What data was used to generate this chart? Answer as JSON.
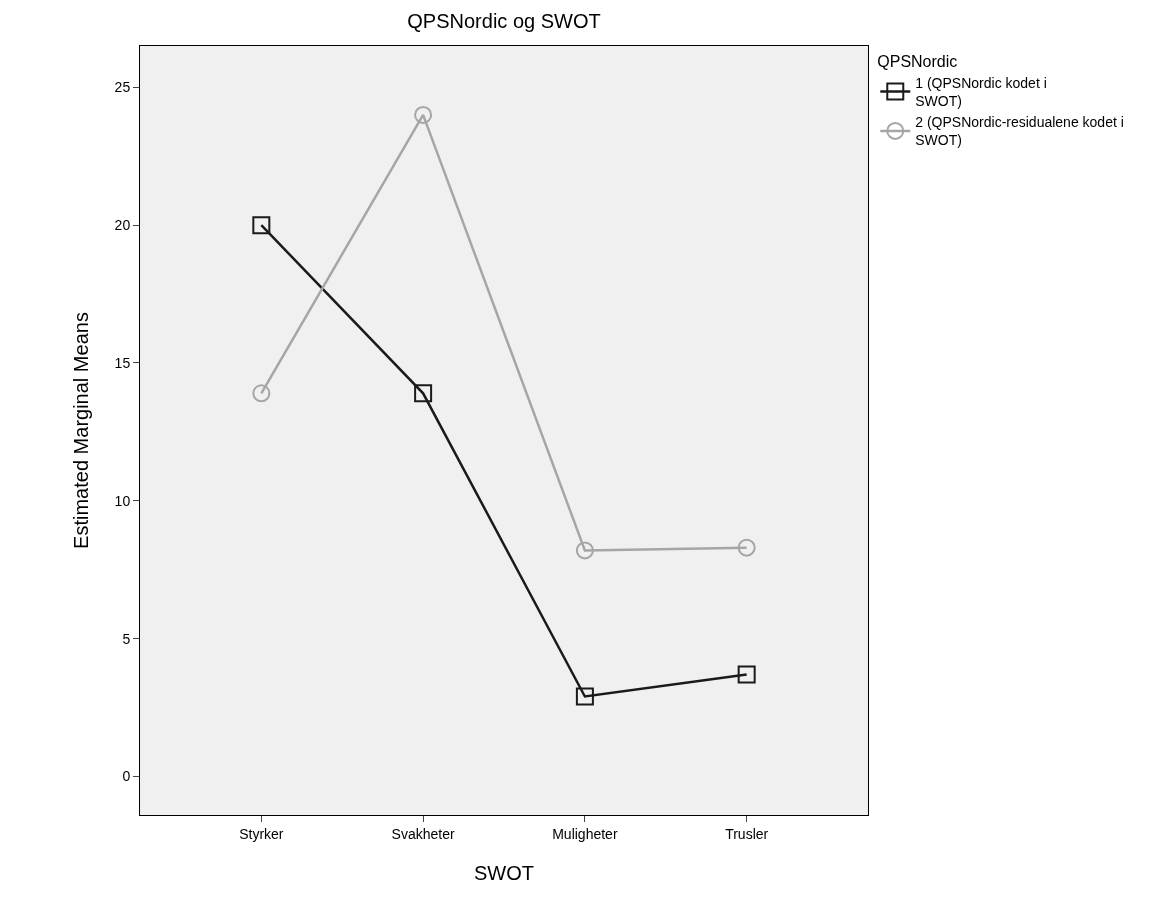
{
  "chart_data": {
    "type": "line",
    "title": "QPSNordic og SWOT",
    "xlabel": "SWOT",
    "ylabel": "Estimated Marginal Means",
    "legend_title": "QPSNordic",
    "categories": [
      "Styrker",
      "Svakheter",
      "Muligheter",
      "Trusler"
    ],
    "series": [
      {
        "name": "1 (QPSNordic kodet i SWOT)",
        "color": "#1a1a1a",
        "marker": "square",
        "values": [
          20.0,
          13.9,
          2.9,
          3.7
        ]
      },
      {
        "name": "2 (QPSNordic-residualene kodet i SWOT)",
        "color": "#a6a6a6",
        "marker": "circle",
        "values": [
          13.9,
          24.0,
          8.2,
          8.3
        ]
      }
    ],
    "ylim": [
      -1.4,
      26.5
    ],
    "yticks": [
      0,
      5,
      10,
      15,
      20,
      25
    ],
    "grid": false,
    "legend": "top right",
    "line_style": "solid"
  }
}
